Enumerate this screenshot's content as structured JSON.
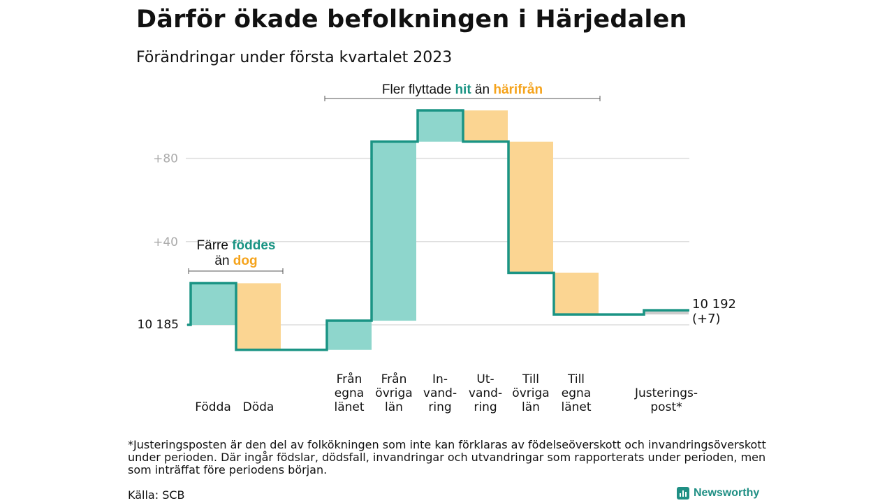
{
  "title": "Därför ökade befolkningen i Härjedalen",
  "subtitle": "Förändringar under första kvartalet 2023",
  "colors": {
    "increase": "#8ed6cc",
    "decrease": "#fbd592",
    "line": "#1a9484",
    "teal_text": "#1a9484",
    "orange_text": "#f5a31b",
    "grid": "#dddddd",
    "adjust_fill": "#cccccc"
  },
  "annotations": {
    "top": {
      "prefix": "Fler flyttade ",
      "hit": "hit",
      "mid": " än ",
      "harifran": "härifrån"
    },
    "left": {
      "prefix": "Färre ",
      "foddes": "föddes",
      "mid": "än ",
      "dog": "dog"
    }
  },
  "chart_data": {
    "type": "waterfall",
    "title": "Därför ökade befolkningen i Härjedalen",
    "subtitle": "Förändringar under första kvartalet 2023",
    "baseline": 10185,
    "baseline_label": "10 185",
    "y_ticks": [
      {
        "value": 80,
        "label": "+80"
      },
      {
        "value": 40,
        "label": "+40"
      }
    ],
    "end_label_1": "10 192",
    "end_label_2": "(+7)",
    "categories": [
      {
        "label_lines": [
          "Födda"
        ],
        "change": 20,
        "kind": "increase"
      },
      {
        "label_lines": [
          "Döda"
        ],
        "change": -32,
        "kind": "decrease"
      },
      {
        "label_lines": [
          "Från",
          "egna",
          "länet"
        ],
        "change": 14,
        "kind": "increase"
      },
      {
        "label_lines": [
          "Från",
          "övriga",
          "län"
        ],
        "change": 86,
        "kind": "increase"
      },
      {
        "label_lines": [
          "In-",
          "vand-",
          "ring"
        ],
        "change": 15,
        "kind": "increase"
      },
      {
        "label_lines": [
          "Ut-",
          "vand-",
          "ring"
        ],
        "change": -15,
        "kind": "decrease"
      },
      {
        "label_lines": [
          "Till",
          "övriga",
          "län"
        ],
        "change": -63,
        "kind": "decrease"
      },
      {
        "label_lines": [
          "Till",
          "egna",
          "länet"
        ],
        "change": -20,
        "kind": "decrease"
      },
      {
        "label_lines": [
          "Justerings-",
          "post*"
        ],
        "change": 2,
        "kind": "adjust"
      }
    ],
    "net_change": 7
  },
  "footnote": "*Justeringsposten är den del av folkökningen som inte kan förklaras av födelseöverskott och invandringsöverskott under perioden. Där ingår födslar, dödsfall, invandringar och utvandringar som rapporterats under perioden, men som inträffat före periodens början.",
  "source": "Källa: SCB",
  "logo": "Newsworthy"
}
